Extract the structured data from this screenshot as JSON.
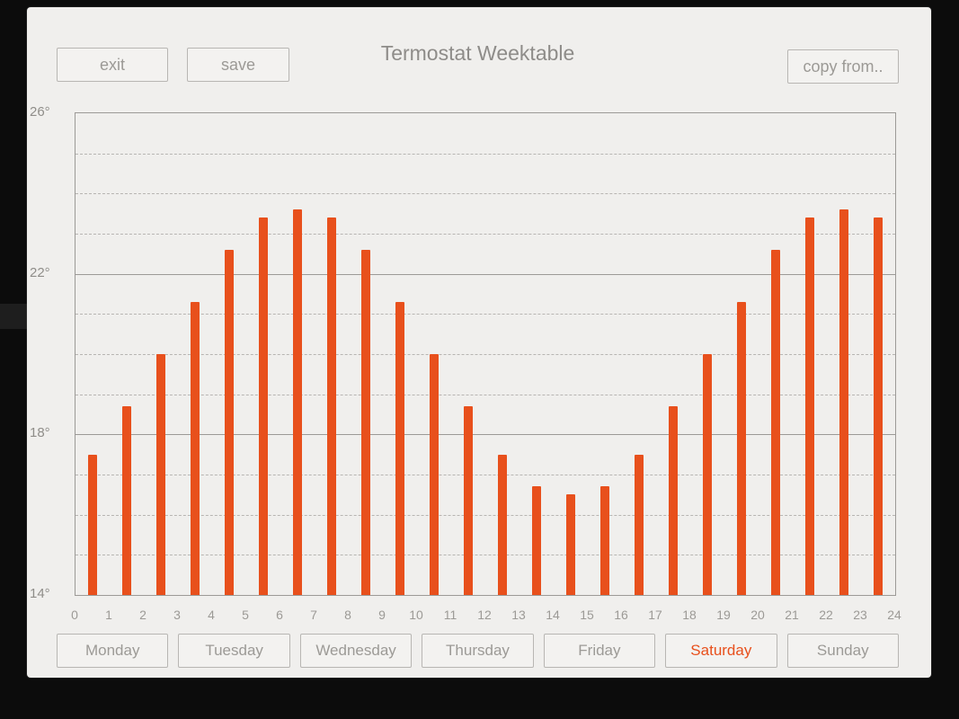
{
  "header": {
    "title": "Termostat Weektable",
    "exit_label": "exit",
    "save_label": "save",
    "copy_from_label": "copy from.."
  },
  "chart_data": {
    "type": "bar",
    "title": "Termostat Weektable",
    "xlabel": "",
    "ylabel": "",
    "ylim": [
      14,
      26
    ],
    "grid": true,
    "major_gridlines": [
      14,
      18,
      22,
      26
    ],
    "y_ticks": [
      {
        "value": 26,
        "label": "26°"
      },
      {
        "value": 22,
        "label": "22°"
      },
      {
        "value": 18,
        "label": "18°"
      },
      {
        "value": 14,
        "label": "14°"
      }
    ],
    "x_ticks": [
      0,
      1,
      2,
      3,
      4,
      5,
      6,
      7,
      8,
      9,
      10,
      11,
      12,
      13,
      14,
      15,
      16,
      17,
      18,
      19,
      20,
      21,
      22,
      23,
      24
    ],
    "x": [
      0,
      1,
      2,
      3,
      4,
      5,
      6,
      7,
      8,
      9,
      10,
      11,
      12,
      13,
      14,
      15,
      16,
      17,
      18,
      19,
      20,
      21,
      22,
      23
    ],
    "values": [
      17.5,
      18.7,
      20.0,
      21.3,
      22.6,
      23.4,
      23.6,
      23.4,
      22.6,
      21.3,
      20.0,
      18.7,
      17.5,
      16.7,
      16.5,
      16.7,
      17.5,
      18.7,
      20.0,
      21.3,
      22.6,
      23.4,
      23.6,
      23.4
    ]
  },
  "days": [
    {
      "label": "Monday",
      "active": false
    },
    {
      "label": "Tuesday",
      "active": false
    },
    {
      "label": "Wednesday",
      "active": false
    },
    {
      "label": "Thursday",
      "active": false
    },
    {
      "label": "Friday",
      "active": false
    },
    {
      "label": "Saturday",
      "active": true
    },
    {
      "label": "Sunday",
      "active": false
    }
  ],
  "colors": {
    "accent": "#e8501c",
    "panel_bg": "#f0efed",
    "grid_major": "#9c9a97",
    "grid_minor": "#b7b5b2",
    "text_muted": "#9c9a96",
    "background": "#0c0c0c"
  }
}
